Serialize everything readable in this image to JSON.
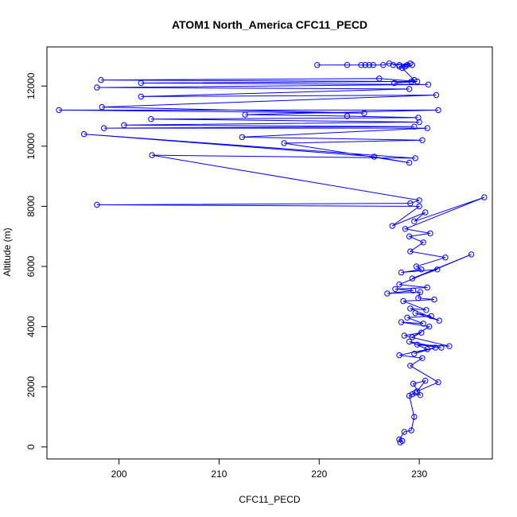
{
  "chart_data": {
    "type": "line",
    "title": "ATOM1 North_America CFC11_PECD",
    "xlabel": "CFC11_PECD",
    "ylabel": "Altitude (m)",
    "xlim": [
      192.8,
      237.3
    ],
    "ylim": [
      -400,
      13300
    ],
    "xticks": [
      200,
      210,
      220,
      230
    ],
    "yticks": [
      0,
      2000,
      4000,
      6000,
      8000,
      10000,
      12000
    ],
    "markers": "open-circle",
    "grid": false,
    "series": [
      {
        "color": "#0000ff",
        "x": [
          228.1,
          228.3,
          228.0,
          228.5,
          229.2,
          229.5,
          229.0,
          229.6,
          229.3,
          230.1,
          229.4,
          230.6,
          229.8,
          231.9,
          229.1,
          230.3,
          228.0,
          231.6,
          229.5,
          230.8,
          229.0,
          232.2,
          229.8,
          233.0,
          228.5,
          230.2,
          229.3,
          231.0,
          228.2,
          230.4,
          228.8,
          231.2,
          229.6,
          232.0,
          229.1,
          230.7,
          228.4,
          231.5,
          229.9,
          230.1,
          226.8,
          229.4,
          227.6,
          230.8,
          228.0,
          235.2,
          229.3,
          231.8,
          228.2,
          230.2,
          229.7,
          232.6,
          229.1,
          230.4,
          229.0,
          231.1,
          228.6,
          236.5,
          229.5,
          230.6,
          227.3,
          230.0,
          197.8,
          229.1,
          230.0,
          203.3,
          229.6,
          196.5,
          225.5,
          229.0,
          216.5,
          230.3,
          212.3,
          230.8,
          198.5,
          229.5,
          200.5,
          230.0,
          203.2,
          229.9,
          222.8,
          212.6,
          231.9,
          194.0,
          224.5,
          198.3,
          231.7,
          202.2,
          229.0,
          197.8,
          230.9,
          202.2,
          229.2,
          198.2,
          226.0,
          229.8,
          227.5,
          229.5,
          228.3,
          228.6,
          229.3,
          228.8,
          228.0,
          229.1,
          227.4,
          228.0,
          227.0,
          226.4,
          225.4,
          225.0,
          224.6,
          224.2,
          222.8,
          219.8
        ],
        "y": [
          150,
          200,
          250,
          500,
          550,
          1000,
          1700,
          1800,
          1750,
          1720,
          2100,
          2200,
          1850,
          2150,
          2700,
          2950,
          3050,
          3300,
          3100,
          3250,
          3500,
          3300,
          3400,
          3350,
          3700,
          3800,
          3650,
          4000,
          4150,
          4100,
          4300,
          4350,
          4450,
          4200,
          4600,
          4550,
          4850,
          4900,
          4950,
          5150,
          5100,
          5200,
          5250,
          5300,
          5400,
          6400,
          5600,
          5900,
          5800,
          5900,
          6000,
          6300,
          6500,
          6800,
          7000,
          7100,
          7250,
          8300,
          7500,
          7800,
          7350,
          8000,
          8050,
          8100,
          8200,
          9700,
          9600,
          10400,
          9650,
          9450,
          10100,
          10200,
          10300,
          10600,
          10600,
          10650,
          10700,
          10800,
          10900,
          10950,
          11000,
          11050,
          11200,
          11200,
          11100,
          11300,
          11700,
          11650,
          11900,
          11950,
          12050,
          12100,
          12150,
          12200,
          12250,
          12150,
          12100,
          12200,
          12600,
          12650,
          12700,
          12700,
          12650,
          12750,
          12700,
          12700,
          12750,
          12700,
          12700,
          12700,
          12700,
          12700,
          12700,
          12700
        ]
      }
    ]
  }
}
